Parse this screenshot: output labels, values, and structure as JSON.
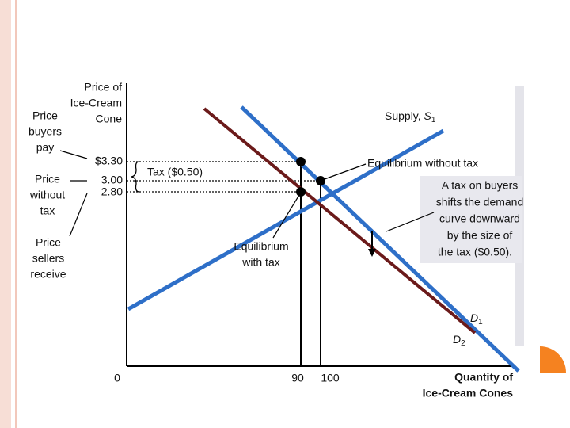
{
  "y_axis": {
    "label": [
      "Price of",
      "Ice-Cream",
      "Cone"
    ],
    "ticks": [
      "$3.30",
      "3.00",
      "2.80"
    ]
  },
  "x_axis": {
    "label": [
      "Quantity of",
      "Ice-Cream Cones"
    ],
    "ticks": [
      "0",
      "90",
      "100"
    ]
  },
  "left_labels": {
    "buyers_pay": [
      "Price",
      "buyers",
      "pay"
    ],
    "without_tax": [
      "Price",
      "without",
      "tax"
    ],
    "sellers_receive": [
      "Price",
      "sellers",
      "receive"
    ]
  },
  "curves": {
    "supply": {
      "name": "Supply, ",
      "symbol": "S",
      "sub": "1"
    },
    "d1": {
      "symbol": "D",
      "sub": "1"
    },
    "d2": {
      "symbol": "D",
      "sub": "2"
    }
  },
  "annotations": {
    "tax": "Tax ($0.50)",
    "eq_without": "Equilibrium without tax",
    "eq_with": [
      "Equilibrium",
      "with tax"
    ],
    "callout": [
      "A tax on buyers",
      "shifts the demand",
      "curve downward",
      "by the size of",
      "the tax ($0.50)."
    ]
  }
}
